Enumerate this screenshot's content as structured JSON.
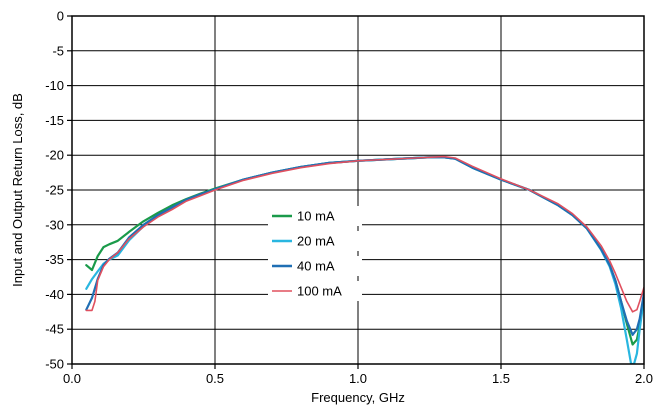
{
  "chart_data": {
    "type": "line",
    "title": "",
    "xlabel": "Frequency, GHz",
    "ylabel": "Input and Output Return Loss, dB",
    "xlim": [
      0.0,
      2.0
    ],
    "ylim": [
      -50,
      0
    ],
    "xticks": [
      0.0,
      0.5,
      1.0,
      1.5,
      2.0
    ],
    "xtick_labels": [
      "0.0",
      "0.5",
      "1.0",
      "1.5",
      "2.0"
    ],
    "yticks": [
      0,
      -5,
      -10,
      -15,
      -20,
      -25,
      -30,
      -35,
      -40,
      -45,
      -50
    ],
    "ytick_labels": [
      "0",
      "-5",
      "-10",
      "-15",
      "-20",
      "-25",
      "-30",
      "-35",
      "-40",
      "-45",
      "-50"
    ],
    "grid": true,
    "legend_position": "center-left",
    "series": [
      {
        "name": "10 mA",
        "color": "#1a9a4a",
        "x": [
          0.05,
          0.07,
          0.09,
          0.11,
          0.13,
          0.16,
          0.2,
          0.25,
          0.3,
          0.35,
          0.4,
          0.45,
          0.5,
          0.6,
          0.7,
          0.8,
          0.9,
          1.0,
          1.1,
          1.2,
          1.25,
          1.3,
          1.34,
          1.4,
          1.5,
          1.6,
          1.7,
          1.75,
          1.8,
          1.85,
          1.88,
          1.9,
          1.92,
          1.94,
          1.96,
          1.975,
          1.985,
          2.0
        ],
        "y": [
          -35.8,
          -36.5,
          -34.5,
          -33.2,
          -32.8,
          -32.3,
          -31.0,
          -29.5,
          -28.3,
          -27.2,
          -26.3,
          -25.5,
          -24.8,
          -23.5,
          -22.5,
          -21.7,
          -21.1,
          -20.8,
          -20.6,
          -20.4,
          -20.3,
          -20.3,
          -20.5,
          -21.8,
          -23.5,
          -25.0,
          -27.2,
          -28.6,
          -30.5,
          -33.5,
          -35.8,
          -38.0,
          -41.0,
          -44.2,
          -47.2,
          -46.5,
          -44.5,
          -40.0
        ]
      },
      {
        "name": "20 mA",
        "color": "#29b6e0",
        "x": [
          0.05,
          0.07,
          0.09,
          0.11,
          0.13,
          0.16,
          0.2,
          0.25,
          0.3,
          0.35,
          0.4,
          0.45,
          0.5,
          0.6,
          0.7,
          0.8,
          0.9,
          1.0,
          1.1,
          1.2,
          1.25,
          1.3,
          1.34,
          1.4,
          1.5,
          1.6,
          1.7,
          1.75,
          1.8,
          1.85,
          1.88,
          1.9,
          1.92,
          1.94,
          1.955,
          1.965,
          1.975,
          1.985,
          2.0
        ],
        "y": [
          -39.2,
          -37.8,
          -36.7,
          -35.6,
          -35.0,
          -34.4,
          -32.2,
          -30.2,
          -28.8,
          -27.6,
          -26.5,
          -25.7,
          -24.9,
          -23.5,
          -22.5,
          -21.7,
          -21.1,
          -20.8,
          -20.6,
          -20.4,
          -20.3,
          -20.3,
          -20.5,
          -21.8,
          -23.5,
          -25.0,
          -27.2,
          -28.6,
          -30.5,
          -33.6,
          -36.0,
          -38.5,
          -42.0,
          -46.5,
          -50.0,
          -50.0,
          -48.5,
          -45.0,
          -40.5
        ]
      },
      {
        "name": "40 mA",
        "color": "#1f6fb4",
        "x": [
          0.05,
          0.07,
          0.09,
          0.11,
          0.13,
          0.16,
          0.2,
          0.25,
          0.3,
          0.35,
          0.4,
          0.45,
          0.5,
          0.6,
          0.7,
          0.8,
          0.9,
          1.0,
          1.1,
          1.2,
          1.25,
          1.3,
          1.34,
          1.4,
          1.5,
          1.6,
          1.7,
          1.75,
          1.8,
          1.85,
          1.88,
          1.9,
          1.92,
          1.94,
          1.96,
          1.975,
          1.985,
          2.0
        ],
        "y": [
          -42.2,
          -40.5,
          -37.8,
          -35.8,
          -34.9,
          -34.0,
          -31.8,
          -30.0,
          -28.6,
          -27.5,
          -26.4,
          -25.6,
          -24.9,
          -23.5,
          -22.5,
          -21.7,
          -21.1,
          -20.8,
          -20.6,
          -20.4,
          -20.3,
          -20.3,
          -20.5,
          -21.8,
          -23.5,
          -25.0,
          -27.2,
          -28.6,
          -30.5,
          -33.5,
          -35.8,
          -38.0,
          -41.0,
          -43.8,
          -45.8,
          -45.0,
          -43.5,
          -39.8
        ]
      },
      {
        "name": "100 mA",
        "color": "#e0505f",
        "x": [
          0.05,
          0.07,
          0.08,
          0.09,
          0.11,
          0.13,
          0.16,
          0.2,
          0.25,
          0.3,
          0.35,
          0.4,
          0.45,
          0.5,
          0.6,
          0.7,
          0.8,
          0.9,
          1.0,
          1.1,
          1.2,
          1.25,
          1.3,
          1.34,
          1.4,
          1.5,
          1.6,
          1.7,
          1.75,
          1.8,
          1.85,
          1.88,
          1.9,
          1.92,
          1.94,
          1.96,
          1.975,
          1.985,
          2.0
        ],
        "y": [
          -42.3,
          -42.3,
          -41.0,
          -38.0,
          -36.0,
          -35.0,
          -34.0,
          -32.0,
          -30.3,
          -28.9,
          -27.8,
          -26.6,
          -25.8,
          -25.0,
          -23.6,
          -22.6,
          -21.8,
          -21.2,
          -20.8,
          -20.6,
          -20.4,
          -20.3,
          -20.2,
          -20.4,
          -21.6,
          -23.4,
          -25.0,
          -27.0,
          -28.4,
          -30.3,
          -33.0,
          -35.2,
          -37.0,
          -39.0,
          -41.0,
          -42.5,
          -42.2,
          -41.0,
          -39.0
        ]
      }
    ]
  }
}
